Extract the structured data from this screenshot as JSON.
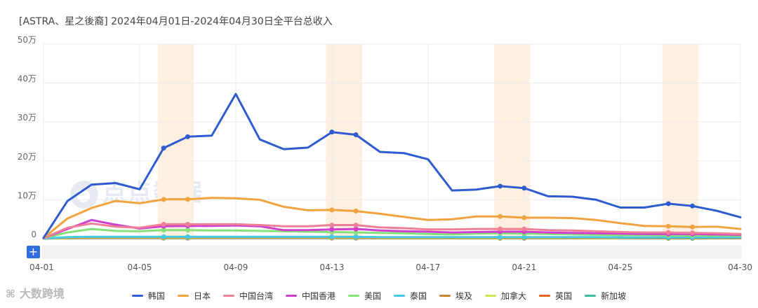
{
  "page": {
    "title": "[ASTRA、星之後裔]  2024年04月01日-2024年04月30日全平台总收入",
    "brand_text": "大数跨境",
    "brand_icon": "brand-logo-icon",
    "watermark_text": "点点数据",
    "add_button_label": "+"
  },
  "chart_data": {
    "type": "line",
    "title": "[ASTRA、星之後裔]  2024年04月01日-2024年04月30日全平台总收入",
    "xlabel": "",
    "ylabel": "",
    "ylim": [
      0,
      500000
    ],
    "yticks": [
      {
        "value": 0,
        "label": "0"
      },
      {
        "value": 100000,
        "label": "10万"
      },
      {
        "value": 200000,
        "label": "20万"
      },
      {
        "value": 300000,
        "label": "30万"
      },
      {
        "value": 400000,
        "label": "40万"
      },
      {
        "value": 500000,
        "label": "50万"
      }
    ],
    "x": [
      "04-01",
      "04-02",
      "04-03",
      "04-04",
      "04-05",
      "04-06",
      "04-07",
      "04-08",
      "04-09",
      "04-10",
      "04-11",
      "04-12",
      "04-13",
      "04-14",
      "04-15",
      "04-16",
      "04-17",
      "04-18",
      "04-19",
      "04-20",
      "04-21",
      "04-22",
      "04-23",
      "04-24",
      "04-25",
      "04-26",
      "04-27",
      "04-28",
      "04-29",
      "04-30"
    ],
    "xticks": [
      "04-01",
      "04-05",
      "04-09",
      "04-13",
      "04-17",
      "04-21",
      "04-25",
      "04-30"
    ],
    "weekend_bands": [
      [
        "04-06",
        "04-07"
      ],
      [
        "04-13",
        "04-14"
      ],
      [
        "04-20",
        "04-21"
      ],
      [
        "04-27",
        "04-28"
      ]
    ],
    "grid": true,
    "legend_position": "bottom",
    "marker_days": [
      "04-06",
      "04-07",
      "04-13",
      "04-14",
      "04-20",
      "04-21",
      "04-27",
      "04-28"
    ],
    "series": [
      {
        "name": "韩国",
        "color": "#2e5bd0",
        "values": [
          2000,
          97000,
          139000,
          143000,
          127000,
          233000,
          262000,
          265000,
          372000,
          255000,
          230000,
          234000,
          274000,
          267000,
          223000,
          220000,
          204000,
          124000,
          126000,
          135000,
          130000,
          109000,
          108000,
          100000,
          80000,
          80000,
          90000,
          84000,
          72000,
          55000
        ]
      },
      {
        "name": "日本",
        "color": "#f0a33e",
        "values": [
          2000,
          52000,
          79000,
          97000,
          91000,
          101000,
          101000,
          105000,
          104000,
          100000,
          82000,
          73000,
          74000,
          71000,
          64000,
          56000,
          48000,
          50000,
          57000,
          57000,
          54000,
          54000,
          53000,
          48000,
          40000,
          33000,
          32000,
          30000,
          31000,
          25000
        ]
      },
      {
        "name": "中国台湾",
        "color": "#ee7f96",
        "values": [
          1000,
          28000,
          39000,
          31000,
          28000,
          37000,
          37000,
          37000,
          37000,
          35000,
          32000,
          32000,
          35000,
          35000,
          29000,
          27000,
          24000,
          24000,
          25000,
          25000,
          25000,
          22000,
          21000,
          19000,
          17000,
          16000,
          16000,
          15000,
          14000,
          12000
        ]
      },
      {
        "name": "中国香港",
        "color": "#cf3ecf",
        "values": [
          1000,
          25000,
          48000,
          36000,
          26000,
          32000,
          33000,
          33000,
          34000,
          32000,
          22000,
          22000,
          24000,
          25000,
          21000,
          19000,
          18000,
          16000,
          17000,
          18000,
          18000,
          16000,
          15000,
          14000,
          13000,
          12000,
          12000,
          12000,
          11000,
          10000
        ]
      },
      {
        "name": "美国",
        "color": "#86e07a",
        "values": [
          1000,
          16000,
          25000,
          20000,
          19000,
          22000,
          22000,
          21000,
          21000,
          20000,
          19000,
          18000,
          17000,
          16000,
          15000,
          14000,
          12000,
          11000,
          13000,
          14000,
          13000,
          12000,
          11000,
          10000,
          9000,
          9000,
          8000,
          8000,
          8000,
          7000
        ]
      },
      {
        "name": "泰国",
        "color": "#44c9e6",
        "values": [
          500,
          4000,
          5000,
          5000,
          5000,
          5000,
          5000,
          5000,
          5000,
          5000,
          5000,
          5000,
          5000,
          5000,
          4000,
          4000,
          4000,
          4000,
          4000,
          4000,
          4000,
          4000,
          4000,
          4000,
          3000,
          3000,
          3000,
          3000,
          3000,
          3000
        ]
      },
      {
        "name": "埃及",
        "color": "#c9832a",
        "values": [
          500,
          3000,
          4000,
          4000,
          4000,
          4000,
          4000,
          4000,
          4000,
          4000,
          4000,
          4000,
          4000,
          4000,
          3000,
          3000,
          3000,
          3000,
          3000,
          3000,
          3000,
          3000,
          3000,
          3000,
          3000,
          2000,
          2000,
          2000,
          2000,
          2000
        ]
      },
      {
        "name": "加拿大",
        "color": "#d1e24f",
        "values": [
          500,
          2000,
          3000,
          3000,
          3000,
          3000,
          3000,
          3000,
          3000,
          3000,
          3000,
          3000,
          3000,
          3000,
          2000,
          2000,
          2000,
          2000,
          2000,
          2000,
          2000,
          2000,
          2000,
          2000,
          2000,
          2000,
          2000,
          2000,
          2000,
          2000
        ]
      },
      {
        "name": "英国",
        "color": "#e8641e",
        "values": [
          500,
          1500,
          2000,
          2000,
          2000,
          2000,
          2000,
          2000,
          2000,
          2000,
          2000,
          2000,
          2000,
          2000,
          1500,
          1500,
          1500,
          1500,
          1500,
          1500,
          1500,
          1500,
          1500,
          1500,
          1500,
          1500,
          1500,
          1500,
          1500,
          1500
        ]
      },
      {
        "name": "新加坡",
        "color": "#3cbf9e",
        "values": [
          500,
          1000,
          1500,
          1500,
          1500,
          1500,
          1500,
          1500,
          1500,
          1500,
          1500,
          1500,
          1500,
          1500,
          1000,
          1000,
          1000,
          1000,
          1000,
          1000,
          1000,
          1000,
          1000,
          1000,
          1000,
          1000,
          1000,
          1000,
          1000,
          1000
        ]
      }
    ]
  }
}
